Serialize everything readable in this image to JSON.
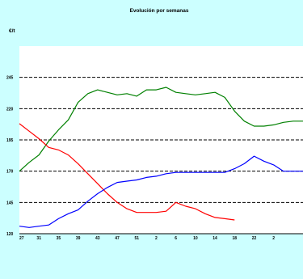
{
  "chart_data": {
    "type": "line",
    "title": "Evolución por semanas",
    "ylabel": "€/t",
    "xlabel": "",
    "ylim": [
      120,
      270
    ],
    "yticks": [
      120,
      145,
      170,
      195,
      220,
      245
    ],
    "grid": "horizontal dashed",
    "legend": "none",
    "x": [
      27,
      29,
      31,
      33,
      35,
      37,
      39,
      41,
      43,
      45,
      47,
      49,
      51,
      1,
      2,
      3,
      5,
      7,
      8,
      10,
      12,
      14,
      16,
      18,
      20,
      21,
      22,
      23,
      24,
      25
    ],
    "x_tick_labels": [
      "27",
      "31",
      "35",
      "39",
      "43",
      "47",
      "51",
      "2",
      "6",
      "10",
      "14",
      "18",
      "22",
      "2"
    ],
    "series": [
      {
        "color": "#008000",
        "values": [
          170,
          177,
          183,
          194,
          203,
          211,
          225,
          232,
          235,
          233,
          231,
          232,
          230,
          235,
          235,
          237,
          233,
          232,
          231,
          232,
          233,
          229,
          218,
          210,
          206,
          206,
          207,
          209,
          210,
          210
        ]
      },
      {
        "color": "#ff0000",
        "values": [
          208,
          202,
          196,
          189,
          187,
          183,
          176,
          168,
          160,
          152,
          145,
          140,
          137,
          137,
          137,
          138,
          145,
          142,
          140,
          136,
          133,
          132,
          131,
          null,
          null,
          null,
          null,
          null,
          null,
          null
        ]
      },
      {
        "color": "#0000ff",
        "values": [
          126,
          125,
          126,
          127,
          132,
          136,
          139,
          146,
          152,
          157,
          161,
          162,
          163,
          165,
          166,
          168,
          169,
          169,
          169,
          169,
          169,
          169,
          172,
          176,
          182,
          178,
          175,
          170,
          170,
          170
        ]
      }
    ]
  }
}
